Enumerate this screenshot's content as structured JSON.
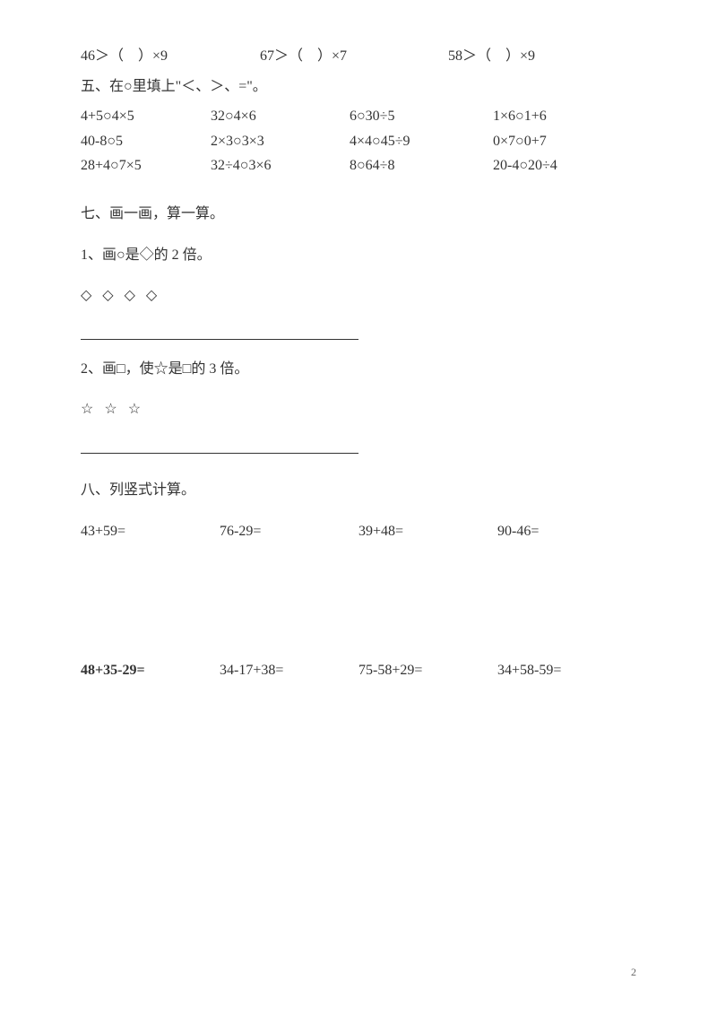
{
  "topRow": {
    "items": [
      "46＞（　）×9",
      "67＞（　）×7",
      "58＞（　）×9"
    ]
  },
  "sectionFive": {
    "title": "五、在○里填上\"＜、＞、=\"。",
    "rows": [
      [
        "4+5○4×5",
        "32○4×6",
        "6○30÷5",
        "1×6○1+6"
      ],
      [
        "40-8○5",
        "2×3○3×3",
        "4×4○45÷9",
        "0×7○0+7"
      ],
      [
        "28+4○7×5",
        "32÷4○3×6",
        "8○64÷8",
        "20-4○20÷4"
      ]
    ]
  },
  "sectionSeven": {
    "title": "七、画一画，算一算。",
    "item1": {
      "label": "1、画○是◇的 2 倍。",
      "shapes": "◇ ◇ ◇ ◇"
    },
    "item2": {
      "label": "2、画□，使☆是□的 3 倍。",
      "shapes": "☆ ☆ ☆"
    }
  },
  "sectionEight": {
    "title": "八、列竖式计算。",
    "row1": [
      "43+59=",
      "76-29=",
      "39+48=",
      "90-46="
    ],
    "row2": [
      "48+35-29=",
      "34-17+38=",
      "75-58+29=",
      "34+58-59="
    ]
  },
  "pageNumber": "2"
}
